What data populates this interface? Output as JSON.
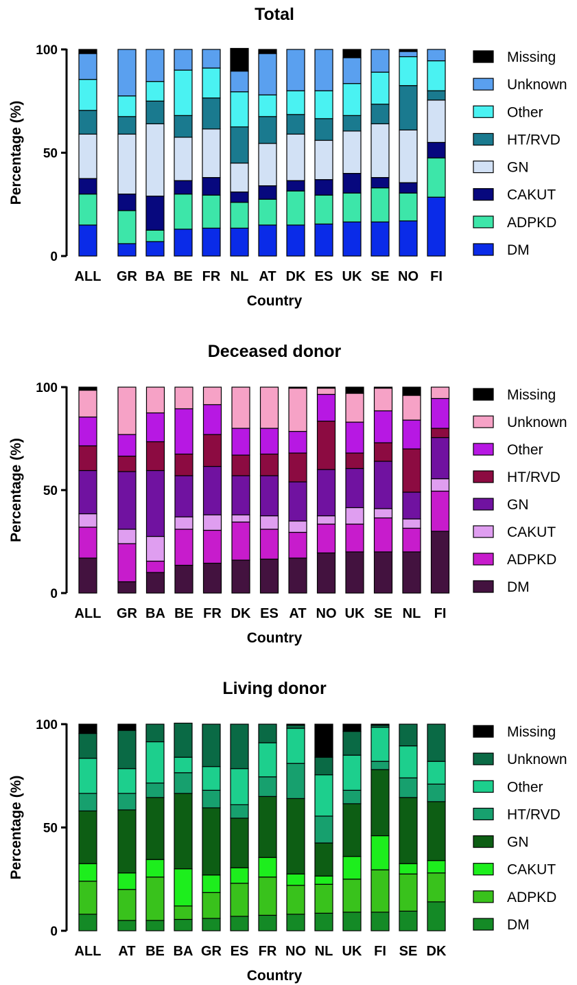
{
  "chart_data": [
    {
      "type": "bar",
      "stacked": true,
      "title": "Total",
      "xlabel": "Country",
      "ylabel": "Percentage (%)",
      "ylim": [
        0,
        100
      ],
      "yticks": [
        "0",
        "50",
        "100"
      ],
      "legend_position": "right",
      "categories": [
        "ALL",
        "GR",
        "BA",
        "BE",
        "FR",
        "NL",
        "AT",
        "DK",
        "ES",
        "UK",
        "SE",
        "NO",
        "FI"
      ],
      "series": [
        {
          "name": "DM",
          "color": "#0a2be8",
          "values": [
            15,
            6,
            7,
            13,
            13.5,
            13.5,
            15,
            15,
            15.5,
            16.5,
            16.5,
            17,
            28.5
          ]
        },
        {
          "name": "ADPKD",
          "color": "#3de6a9",
          "values": [
            15,
            16,
            5.5,
            17,
            16,
            12.5,
            12.5,
            16.5,
            14,
            14,
            16.5,
            13.5,
            19
          ]
        },
        {
          "name": "CAKUT",
          "color": "#07087e",
          "values": [
            7.5,
            8,
            16.5,
            6.5,
            8.5,
            5,
            6.5,
            5,
            7.5,
            9.5,
            5,
            5,
            7.5
          ]
        },
        {
          "name": "GN",
          "color": "#d2e1f5",
          "values": [
            21.5,
            29,
            35,
            21,
            23.5,
            14,
            20.5,
            22.5,
            19,
            20.5,
            26,
            25.5,
            20.5
          ]
        },
        {
          "name": "HT/RVD",
          "color": "#1a7a8f",
          "values": [
            11.5,
            8.5,
            11,
            10.5,
            15,
            17.5,
            13,
            9.5,
            10.5,
            7.5,
            9.5,
            21.5,
            4.5
          ]
        },
        {
          "name": "Other",
          "color": "#4af2f2",
          "values": [
            15,
            10,
            9.5,
            22,
            14.5,
            17,
            10.5,
            11.5,
            13.5,
            15.5,
            15.5,
            14,
            14.5
          ]
        },
        {
          "name": "Unknown",
          "color": "#5aa0ef",
          "values": [
            12.5,
            22.5,
            15.5,
            10,
            9,
            10,
            20,
            20,
            20,
            12.5,
            11,
            2.5,
            5.5
          ]
        },
        {
          "name": "Missing",
          "color": "#000000",
          "values": [
            2,
            0,
            0,
            0,
            0,
            11,
            2,
            0,
            0,
            4,
            0,
            1,
            0
          ]
        }
      ]
    },
    {
      "type": "bar",
      "stacked": true,
      "title": "Deceased donor",
      "xlabel": "Country",
      "ylabel": "Percentage (%)",
      "ylim": [
        0,
        100
      ],
      "yticks": [
        "0",
        "50",
        "100"
      ],
      "legend_position": "right",
      "categories": [
        "ALL",
        "GR",
        "BA",
        "BE",
        "FR",
        "DK",
        "ES",
        "AT",
        "NO",
        "UK",
        "SE",
        "NL",
        "FI"
      ],
      "series": [
        {
          "name": "DM",
          "color": "#43123f",
          "values": [
            17,
            5.5,
            10,
            13.5,
            14.5,
            16,
            16.5,
            17,
            19.5,
            20,
            20,
            20,
            30
          ]
        },
        {
          "name": "ADPKD",
          "color": "#c71ccc",
          "values": [
            15,
            18.5,
            5.5,
            17.5,
            16,
            18.5,
            14.5,
            12.5,
            14,
            13.5,
            16.5,
            11.5,
            19.5
          ]
        },
        {
          "name": "CAKUT",
          "color": "#df9ef0",
          "values": [
            6.5,
            7,
            12,
            6,
            7.5,
            3.5,
            6.5,
            5.5,
            4,
            8,
            4.5,
            4.5,
            6
          ]
        },
        {
          "name": "GN",
          "color": "#7012a0",
          "values": [
            21,
            28,
            32,
            20,
            23.5,
            19,
            19.5,
            19,
            22.5,
            19,
            23,
            13,
            20
          ]
        },
        {
          "name": "HT/RVD",
          "color": "#8c0b41",
          "values": [
            12,
            7.5,
            14,
            10.5,
            15.5,
            10,
            10.5,
            14,
            23.5,
            7.5,
            9,
            21,
            4.5
          ]
        },
        {
          "name": "Other",
          "color": "#b718e3",
          "values": [
            14,
            10.5,
            14,
            22,
            14.5,
            13,
            12.5,
            10.5,
            13,
            15,
            15.5,
            14,
            14.5
          ]
        },
        {
          "name": "Unknown",
          "color": "#f6a2c6",
          "values": [
            13,
            23,
            12.5,
            10.5,
            8.5,
            20,
            20,
            21,
            3,
            14,
            11,
            12,
            5.5
          ]
        },
        {
          "name": "Missing",
          "color": "#000000",
          "values": [
            1.5,
            0,
            0,
            0,
            0,
            0,
            0,
            0.5,
            0.5,
            3,
            0.5,
            4,
            0
          ]
        }
      ]
    },
    {
      "type": "bar",
      "stacked": true,
      "title": "Living donor",
      "xlabel": "Country",
      "ylabel": "Percentage (%)",
      "ylim": [
        0,
        100
      ],
      "yticks": [
        "0",
        "50",
        "100"
      ],
      "legend_position": "right",
      "categories": [
        "ALL",
        "AT",
        "BE",
        "BA",
        "GR",
        "ES",
        "FR",
        "NO",
        "NL",
        "UK",
        "FI",
        "SE",
        "DK"
      ],
      "series": [
        {
          "name": "DM",
          "color": "#148a26",
          "values": [
            8,
            5,
            5,
            5.5,
            6,
            7,
            7.5,
            8,
            8.5,
            9,
            9,
            9.5,
            14
          ]
        },
        {
          "name": "ADPKD",
          "color": "#39c21c",
          "values": [
            16,
            15,
            21,
            6.5,
            12.5,
            16,
            18.5,
            14,
            14,
            16,
            20.5,
            18,
            14
          ]
        },
        {
          "name": "CAKUT",
          "color": "#1dee1d",
          "values": [
            8.5,
            8,
            8.5,
            18,
            8.5,
            7.5,
            9.5,
            5.5,
            4,
            11,
            16.5,
            5,
            6
          ]
        },
        {
          "name": "GN",
          "color": "#0d5e14",
          "values": [
            25.5,
            30.5,
            30,
            36.5,
            32.5,
            24,
            29.5,
            36.5,
            16,
            25.5,
            32,
            32,
            28.5
          ]
        },
        {
          "name": "HT/RVD",
          "color": "#17a06e",
          "values": [
            8.5,
            8,
            7,
            10,
            8.5,
            6.5,
            9.5,
            17,
            13,
            6.5,
            4,
            9.5,
            8.5
          ]
        },
        {
          "name": "Other",
          "color": "#1dcf8d",
          "values": [
            17,
            12,
            20,
            7.5,
            11.5,
            17.5,
            16.5,
            17,
            20,
            17,
            16.5,
            15.5,
            11
          ]
        },
        {
          "name": "Unknown",
          "color": "#0a6a45",
          "values": [
            12,
            18.5,
            8.5,
            16.5,
            20.5,
            21.5,
            9,
            1.5,
            8.5,
            11.5,
            1,
            10.5,
            18
          ]
        },
        {
          "name": "Missing",
          "color": "#000000",
          "values": [
            4.5,
            3,
            0,
            0,
            0,
            0,
            0,
            0.5,
            16,
            3.5,
            0.5,
            0,
            0
          ]
        }
      ]
    }
  ]
}
